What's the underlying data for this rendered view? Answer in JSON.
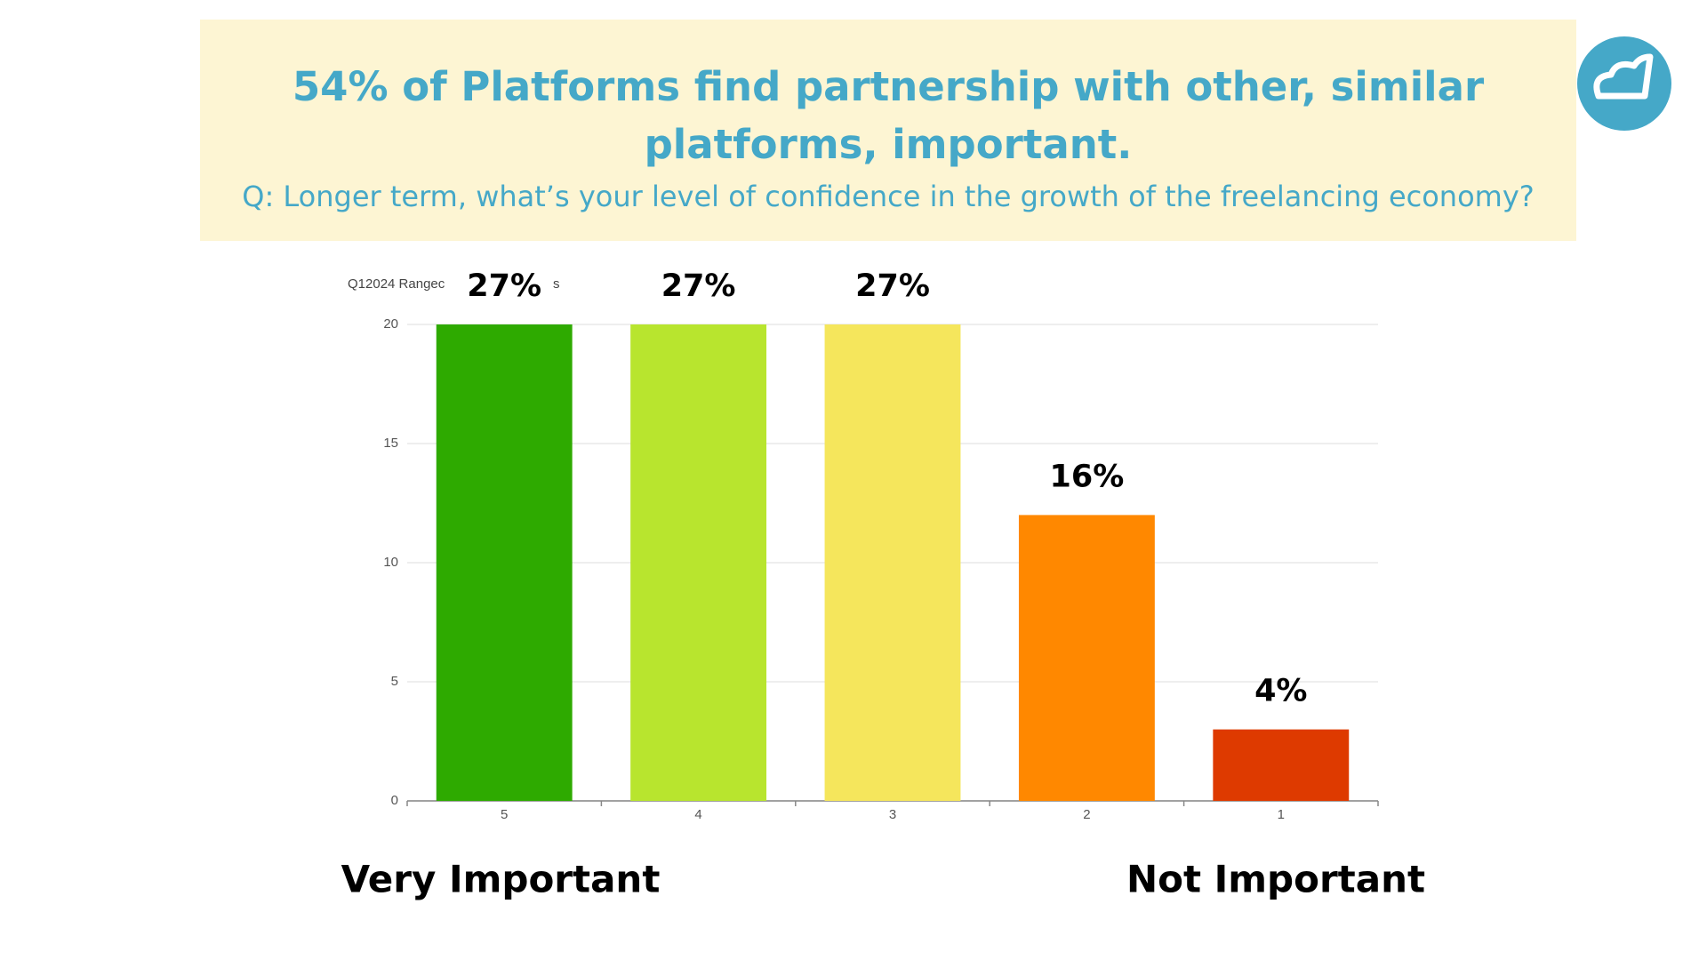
{
  "chart_data": {
    "type": "bar",
    "title_lines": [
      "54% of Platforms find partnership with other, similar",
      "platforms, important."
    ],
    "subtitle": "Q: Longer term, what’s your level of confidence in the growth of the freelancing economy?",
    "legend_fragments": [
      "Q12024 Rangec",
      "s"
    ],
    "categories": [
      "5",
      "4",
      "3",
      "2",
      "1"
    ],
    "values": [
      20,
      20,
      20,
      12,
      3
    ],
    "annotations": [
      "27%",
      "27%",
      "27%",
      "16%",
      "4%"
    ],
    "colors": [
      "#2eaa00",
      "#b8e52e",
      "#f5e65c",
      "#ff8800",
      "#de3a00"
    ],
    "scale_labels": [
      "Very Important",
      "Not Important"
    ],
    "ylim": [
      0,
      20
    ],
    "yticks": [
      0,
      5,
      10,
      15,
      20
    ],
    "grid": true
  }
}
